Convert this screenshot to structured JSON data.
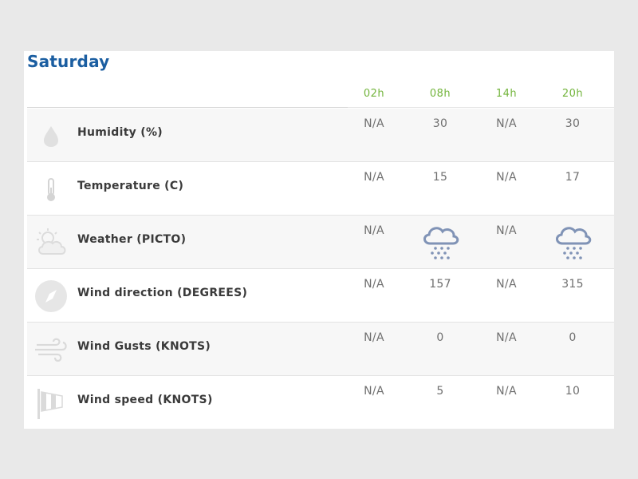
{
  "forecast": {
    "day": "Saturday",
    "hours": [
      "02h",
      "08h",
      "14h",
      "20h"
    ],
    "rows": [
      {
        "label": "Humidity (%)",
        "icon": "humidity-icon",
        "values": [
          "N/A",
          "30",
          "N/A",
          "30"
        ]
      },
      {
        "label": "Temperature (C)",
        "icon": "thermometer-icon",
        "values": [
          "N/A",
          "15",
          "N/A",
          "17"
        ]
      },
      {
        "label": "Weather (PICTO)",
        "icon": "weather-icon",
        "values": [
          "N/A",
          "snow-rain-icon",
          "N/A",
          "snow-rain-icon"
        ]
      },
      {
        "label": "Wind direction (DEGREES)",
        "icon": "compass-icon",
        "values": [
          "N/A",
          "157",
          "N/A",
          "315"
        ]
      },
      {
        "label": "Wind Gusts (KNOTS)",
        "icon": "wind-gusts-icon",
        "values": [
          "N/A",
          "0",
          "N/A",
          "0"
        ]
      },
      {
        "label": "Wind speed (KNOTS)",
        "icon": "windsock-icon",
        "values": [
          "N/A",
          "5",
          "N/A",
          "10"
        ]
      }
    ]
  },
  "colors": {
    "title": "#1b5ea1",
    "hour_labels": "#72b43b",
    "weather_picto": "#8093b6",
    "row_icons": "#dadada"
  }
}
